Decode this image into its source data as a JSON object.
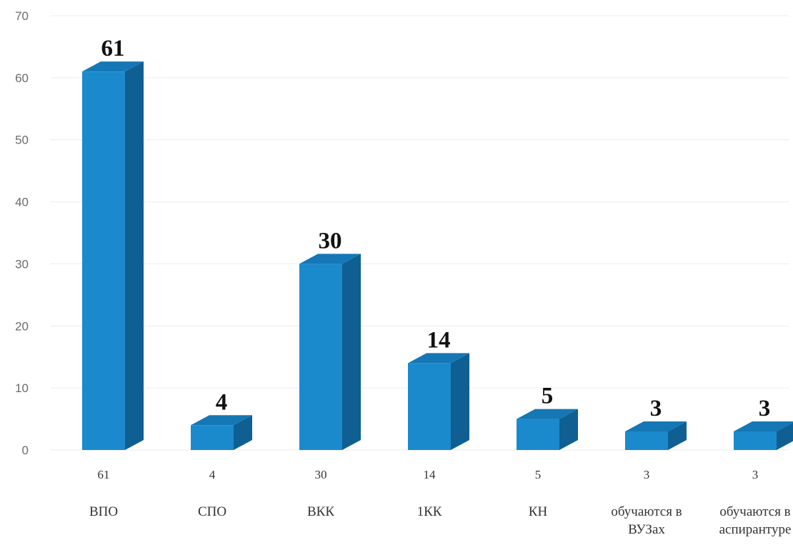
{
  "chart_data": {
    "type": "bar",
    "categories": [
      [
        "ВПО"
      ],
      [
        "СПО"
      ],
      [
        "ВКК"
      ],
      [
        "1КК"
      ],
      [
        "КН"
      ],
      [
        "обучаются в",
        "ВУЗах"
      ],
      [
        "обучаются в",
        "аспирантуре"
      ]
    ],
    "values": [
      61,
      4,
      30,
      14,
      5,
      3,
      3
    ],
    "value_table": [
      "61",
      "4",
      "30",
      "14",
      "5",
      "3",
      "3"
    ],
    "data_labels": [
      "61",
      "4",
      "30",
      "14",
      "5",
      "3",
      "3"
    ],
    "yticks": [
      "0",
      "10",
      "20",
      "30",
      "40",
      "50",
      "60",
      "70"
    ],
    "ylim": [
      0,
      70
    ],
    "style": "3d-column",
    "grid": true,
    "colors": {
      "front": "#1B8ACD",
      "top": "#1577B5",
      "side": "#0F5F93"
    }
  }
}
